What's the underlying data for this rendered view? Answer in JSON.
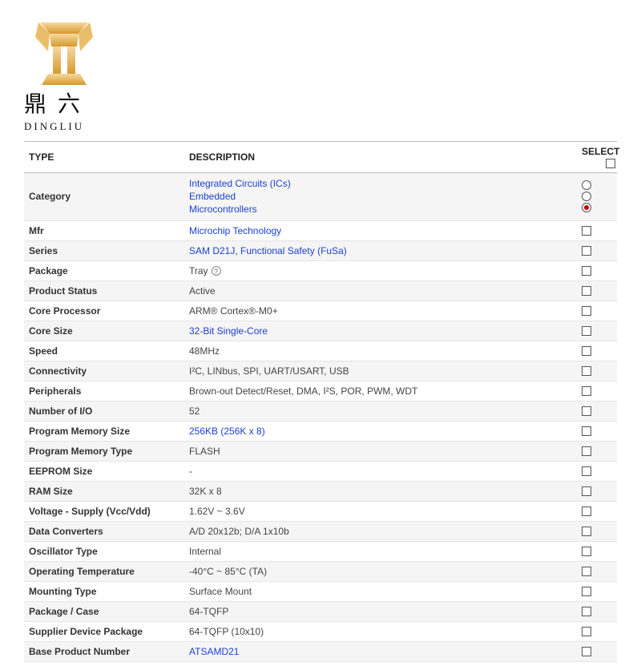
{
  "logo": {
    "cjk": "鼎六",
    "latin": "DINGLIU",
    "colors": {
      "gold_light": "#f2c77a",
      "gold_dark": "#d59a2f",
      "black": "#111111"
    }
  },
  "table": {
    "headers": {
      "type": "TYPE",
      "description": "DESCRIPTION",
      "select": "SELECT"
    },
    "rows": [
      {
        "type": "Category",
        "desc_kind": "links",
        "desc_lines": [
          "Integrated Circuits (ICs)",
          "Embedded",
          "Microcontrollers"
        ],
        "select_kind": "radio3",
        "radio_checked_index": 2
      },
      {
        "type": "Mfr",
        "desc_kind": "link",
        "desc": "Microchip Technology",
        "select_kind": "checkbox"
      },
      {
        "type": "Series",
        "desc_kind": "link",
        "desc": "SAM D21J, Functional Safety (FuSa)",
        "select_kind": "checkbox"
      },
      {
        "type": "Package",
        "desc_kind": "plain_help",
        "desc": "Tray",
        "select_kind": "checkbox"
      },
      {
        "type": "Product Status",
        "desc_kind": "plain",
        "desc": "Active",
        "select_kind": "checkbox"
      },
      {
        "type": "Core Processor",
        "desc_kind": "plain",
        "desc": "ARM® Cortex®-M0+",
        "select_kind": "checkbox"
      },
      {
        "type": "Core Size",
        "desc_kind": "link",
        "desc": "32-Bit Single-Core",
        "select_kind": "checkbox"
      },
      {
        "type": "Speed",
        "desc_kind": "plain",
        "desc": "48MHz",
        "select_kind": "checkbox"
      },
      {
        "type": "Connectivity",
        "desc_kind": "plain",
        "desc": "I²C, LINbus, SPI, UART/USART, USB",
        "select_kind": "checkbox"
      },
      {
        "type": "Peripherals",
        "desc_kind": "plain",
        "desc": "Brown-out Detect/Reset, DMA, I²S, POR, PWM, WDT",
        "select_kind": "checkbox"
      },
      {
        "type": "Number of I/O",
        "desc_kind": "plain",
        "desc": "52",
        "select_kind": "checkbox"
      },
      {
        "type": "Program Memory Size",
        "desc_kind": "link",
        "desc": "256KB (256K x 8)",
        "select_kind": "checkbox"
      },
      {
        "type": "Program Memory Type",
        "desc_kind": "plain",
        "desc": "FLASH",
        "select_kind": "checkbox"
      },
      {
        "type": "EEPROM Size",
        "desc_kind": "plain",
        "desc": "-",
        "select_kind": "checkbox"
      },
      {
        "type": "RAM Size",
        "desc_kind": "plain",
        "desc": "32K x 8",
        "select_kind": "checkbox"
      },
      {
        "type": "Voltage - Supply (Vcc/Vdd)",
        "desc_kind": "plain",
        "desc": "1.62V ~ 3.6V",
        "select_kind": "checkbox"
      },
      {
        "type": "Data Converters",
        "desc_kind": "plain",
        "desc": "A/D 20x12b; D/A 1x10b",
        "select_kind": "checkbox"
      },
      {
        "type": "Oscillator Type",
        "desc_kind": "plain",
        "desc": "Internal",
        "select_kind": "checkbox"
      },
      {
        "type": "Operating Temperature",
        "desc_kind": "plain",
        "desc": "-40°C ~ 85°C (TA)",
        "select_kind": "checkbox"
      },
      {
        "type": "Mounting Type",
        "desc_kind": "plain",
        "desc": "Surface Mount",
        "select_kind": "checkbox"
      },
      {
        "type": "Package / Case",
        "desc_kind": "plain",
        "desc": "64-TQFP",
        "select_kind": "checkbox"
      },
      {
        "type": "Supplier Device Package",
        "desc_kind": "plain",
        "desc": "64-TQFP (10x10)",
        "select_kind": "checkbox"
      },
      {
        "type": "Base Product Number",
        "desc_kind": "link",
        "desc": "ATSAMD21",
        "select_kind": "checkbox"
      }
    ]
  },
  "styles": {
    "row_bg_odd": "#f5f5f5",
    "row_bg_even": "#ffffff",
    "link_color": "#1b3fcf",
    "text_color": "#333333",
    "border_color": "#e5e5e5",
    "header_border": "#bbbbbb",
    "font_size_pt": 9
  }
}
